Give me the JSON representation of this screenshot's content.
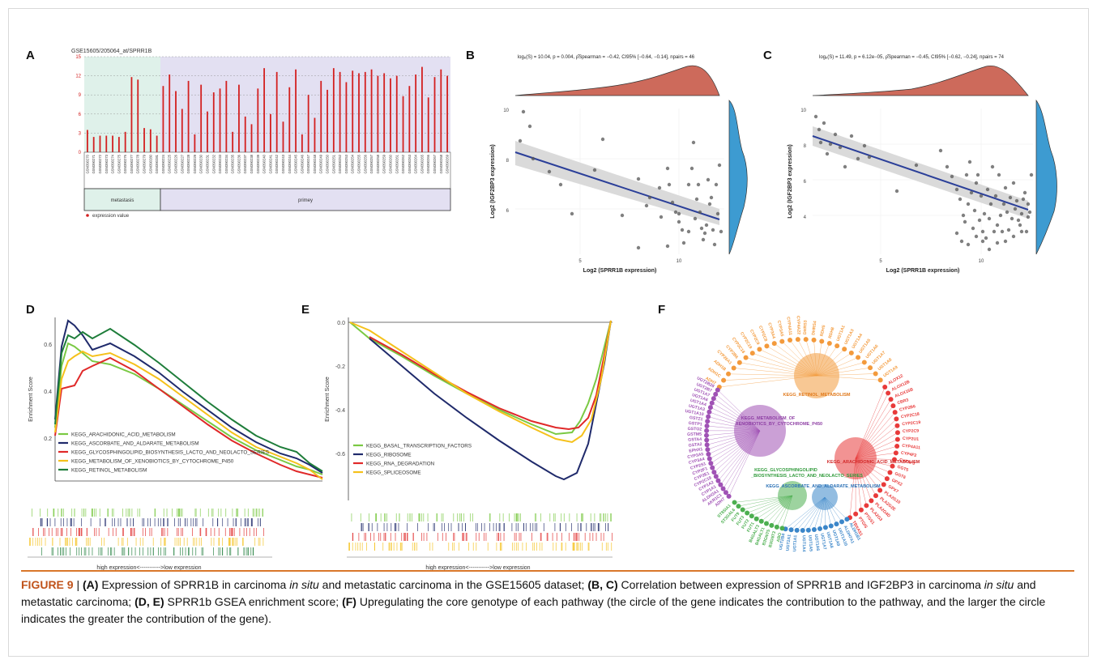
{
  "panels": {
    "A": {
      "letter": "A",
      "title": "GSE15605/205064_at/SPRR1B",
      "y_ticks": [
        "15",
        "12",
        "9",
        "6",
        "3",
        "0"
      ],
      "samples": [
        "GSM390270",
        "GSM390271",
        "GSM390272",
        "GSM390273",
        "GSM390274",
        "GSM390275",
        "GSM390276",
        "GSM390277",
        "GSM390278",
        "GSM390279",
        "GSM390280",
        "GSM390281",
        "GSM390224",
        "GSM390225",
        "GSM390226",
        "GSM390227",
        "GSM390228",
        "GSM390229",
        "GSM390230",
        "GSM390231",
        "GSM390232",
        "GSM390233",
        "GSM390234",
        "GSM390235",
        "GSM390236",
        "GSM390237",
        "GSM390238",
        "GSM390239",
        "GSM390240",
        "GSM390241",
        "GSM390242",
        "GSM390243",
        "GSM390244",
        "GSM390245",
        "GSM390246",
        "GSM390247",
        "GSM390248",
        "GSM390249",
        "GSM390250",
        "GSM390251",
        "GSM390252",
        "GSM390253",
        "GSM390254",
        "GSM390255",
        "GSM390256",
        "GSM390257",
        "GSM390258",
        "GSM390259",
        "GSM390260",
        "GSM390261",
        "GSM390262",
        "GSM390263",
        "GSM390264",
        "GSM390265",
        "GSM390266",
        "GSM390267",
        "GSM390268",
        "GSM390269"
      ],
      "group_metastasis": "metastasis",
      "group_primary": "primey",
      "legend": "expression value",
      "colors": {
        "bar": "#d32020",
        "metastasis_bg": "#dff1ea",
        "primary_bg": "#e3e0f2"
      }
    },
    "B": {
      "letter": "B",
      "stats": "logₑ(S) = 10.04, p = 0.004, ρ̂Spearman = −0.42, CI95% [−0.64, −0.14], npairs = 46",
      "xlabel": "Log2 (SPRR1B expression)",
      "ylabel": "Log2 (IGF2BP3 expression)",
      "x_ticks": [
        "5",
        "10"
      ],
      "y_ticks": [
        "10",
        "8",
        "6"
      ],
      "colors": {
        "density_top": "#cd6a5b",
        "density_right": "#3d9bd1",
        "line": "#2b3f99",
        "band": "#d4d4d4",
        "point": "#555555"
      }
    },
    "C": {
      "letter": "C",
      "stats": "logₑ(S) = 11.49, p = 6.12e−05, ρ̂Spearman = −0.45, CI95% [−0.62, −0.24], npairs = 74",
      "xlabel": "Log2 (SPRR1B expression)",
      "ylabel": "Log2 (IGF2BP3 expression)",
      "x_ticks": [
        "5",
        "10"
      ],
      "y_ticks": [
        "10",
        "8",
        "6",
        "4"
      ]
    },
    "D": {
      "letter": "D",
      "ylabel": "Enrichment Score",
      "y_ticks": [
        "0.6",
        "0.4",
        "0.2"
      ],
      "xlabel": "high expression<----------->low expression",
      "legend": [
        {
          "name": "KEGG_ARACHIDONIC_ACID_METABOLISM",
          "color": "#7ac943"
        },
        {
          "name": "KEGG_ASCORBATE_AND_ALDARATE_METABOLISM",
          "color": "#1f2a6b"
        },
        {
          "name": "KEGG_GLYCOSPHINGOLIPID_BIOSYNTHESIS_LACTO_AND_NEOLACTO_SERIES",
          "color": "#e02929"
        },
        {
          "name": "KEGG_METABOLISM_OF_XENOBIOTICS_BY_CYTOCHROME_P450",
          "color": "#f5c11b"
        },
        {
          "name": "KEGG_RETINOL_METABOLISM",
          "color": "#1e7d3a"
        }
      ]
    },
    "E": {
      "letter": "E",
      "ylabel": "Enrichment Score",
      "y_ticks": [
        "0.0",
        "-0.2",
        "-0.4",
        "-0.6"
      ],
      "xlabel": "high expression<----------->low expression",
      "legend": [
        {
          "name": "KEGG_BASAL_TRANSCRIPTION_FACTORS",
          "color": "#7ac943"
        },
        {
          "name": "KEGG_RIBOSOME",
          "color": "#1f2a6b"
        },
        {
          "name": "KEGG_RNA_DEGRADATION",
          "color": "#e02929"
        },
        {
          "name": "KEGG_SPLICEOSOME",
          "color": "#f5c11b"
        }
      ]
    },
    "F": {
      "letter": "F",
      "hubs": [
        {
          "label": "KEGG_RETINOL_METABOLISM",
          "color": "#f39a3c"
        },
        {
          "label": "KEGG_METABOLISM_OF_XENOBIOTICS_BY_CYTOCHROME_P450",
          "color": "#a052b5"
        },
        {
          "label": "KEGG_ARACHIDONIC_ACID_METABOLISM",
          "color": "#e83a3a"
        },
        {
          "label": "KEGG_GLYCOSPHINGOLIPID_BIOSYNTHESIS_LACTO_AND_NEOLACTO_SERIES",
          "color": "#4caf50"
        },
        {
          "label": "KEGG_ASCORBATE_AND_ALDARATE_METABOLISM",
          "color": "#3b86c9"
        }
      ],
      "genes": {
        "orange": [
          "ADH7",
          "ADH1C",
          "ADH1B",
          "CYP26A1",
          "CYP2B6",
          "CYP2C18",
          "CYP2C19",
          "CYP2C9",
          "CYP2C8",
          "CYP3A4",
          "CYP3A5",
          "CYP4A11",
          "CYP4A22",
          "DHRS3",
          "DHRS4",
          "RDH5",
          "RDH8",
          "UGT1A1",
          "UGT1A3",
          "UGT1A4",
          "UGT1A5",
          "UGT1A6",
          "UGT1A7",
          "UGT1A8",
          "UGT1A9"
        ],
        "red": [
          "ALOX12",
          "ALOX12B",
          "ALOX15B",
          "CBR3",
          "CYP2B6",
          "CYP2C18",
          "CYP2C19",
          "CYP2C9",
          "CYP2U1",
          "CYP4A11",
          "CYP4F2",
          "CYP4F3",
          "GGT5",
          "GGT6",
          "GPX2",
          "GPX7",
          "PLA2G10",
          "PLA2G2E",
          "PLA2G4D",
          "PLA2G3",
          "PTGS1",
          "PTGIS",
          "TBXAS1"
        ],
        "blue": [
          "ALDH1B1",
          "ALDH7A1",
          "UGT1A10",
          "UGT1A9",
          "UGT1A8",
          "UGT1A7",
          "UGT1A6",
          "UGT1A5",
          "UGT1A4",
          "UGT1A1",
          "UGT2A1",
          "UGT2B4"
        ],
        "green": [
          "ABO",
          "B3GNT3",
          "B3GNT5",
          "B4GALT1",
          "B4GALT3",
          "FUT1",
          "FUT2",
          "FUT3",
          "FUT9",
          "ST3GAL6",
          "ST8SIA1"
        ],
        "purple": [
          "ADH7",
          "AKR1C1",
          "ALDH3A1",
          "CYP1A1",
          "CYP1A2",
          "CYP2C19",
          "CYP2E1",
          "CYP2F1",
          "CYP2S1",
          "CYP3A4",
          "CYP3A5",
          "EPHX1",
          "GSTA2",
          "GSTA4",
          "GSTM5",
          "GSTO2",
          "GSTP1",
          "GSTZ1",
          "UGT1A10",
          "UGT1A3",
          "UGT1A4",
          "UGT1A6",
          "UGT1A7",
          "UGT2B7",
          "UGT2B28"
        ]
      }
    }
  },
  "caption": {
    "fig": "FIGURE 9",
    "sep": " | ",
    "p1b": "(A)",
    "p1": " Expression of SPRR1B in carcinoma ",
    "p1i": "in situ",
    "p1c": " and metastatic carcinoma in the GSE15605 dataset; ",
    "p2b": "(B, C)",
    "p2": " Correlation between expression of SPRR1B and IGF2BP3 in carcinoma ",
    "p2i": "in situ",
    "p2c": " and metastatic carcinoma; ",
    "p3b": "(D, E)",
    "p3": " SPRR1b GSEA enrichment score; ",
    "p4b": "(F)",
    "p4": " Upregulating the core genotype of each pathway (the circle of the gene indicates the contribution to the pathway, and the larger the circle indicates the greater the contribution of the gene)."
  }
}
